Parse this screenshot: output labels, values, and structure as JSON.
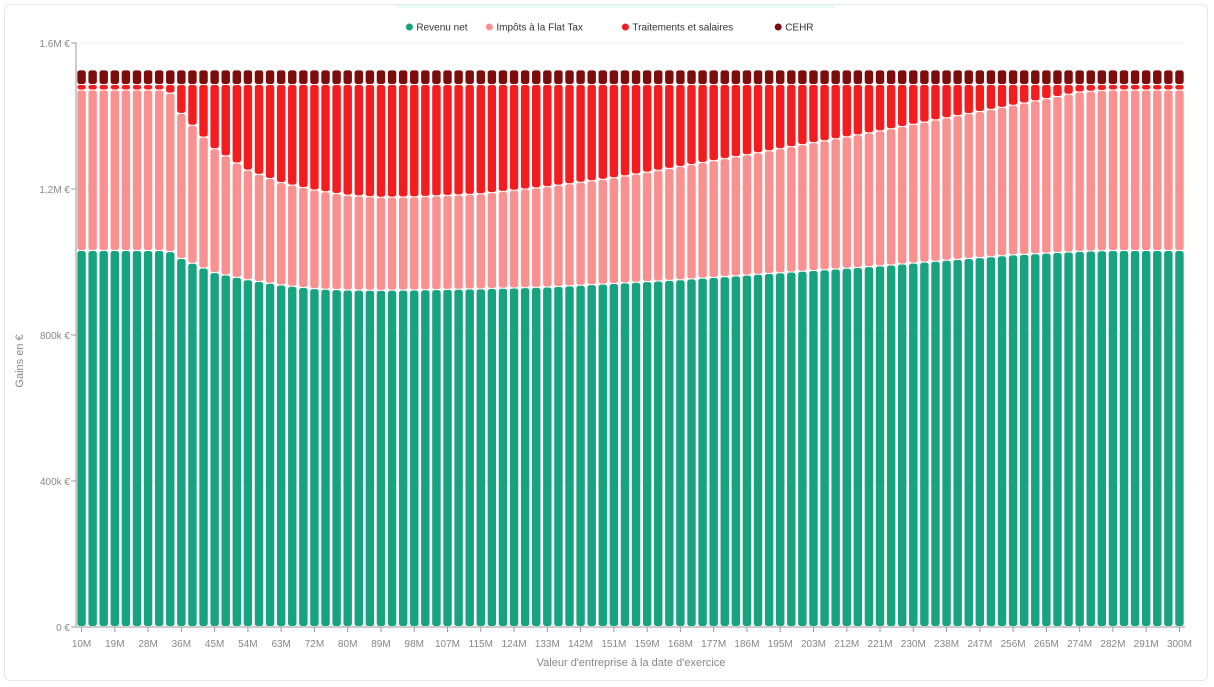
{
  "chart_data": {
    "type": "bar",
    "stacked": true,
    "xlabel": "Valeur d'entreprise à la date d'exercice",
    "ylabel": "Gains en €",
    "ylim": [
      0,
      1600000
    ],
    "grid": true,
    "legend_position": "top",
    "y_ticks": [
      "0 €",
      "400k €",
      "800k €",
      "1.2M €",
      "1.6M €"
    ],
    "y_tick_values": [
      0,
      400000,
      800000,
      1200000,
      1600000
    ],
    "x_ticks": [
      "10M",
      "19M",
      "28M",
      "36M",
      "45M",
      "54M",
      "63M",
      "72M",
      "80M",
      "89M",
      "98M",
      "107M",
      "115M",
      "124M",
      "133M",
      "142M",
      "151M",
      "159M",
      "168M",
      "177M",
      "186M",
      "195M",
      "203M",
      "212M",
      "221M",
      "230M",
      "238M",
      "247M",
      "256M",
      "265M",
      "274M",
      "282M",
      "291M",
      "300M"
    ],
    "x_range_millions": [
      10,
      300
    ],
    "n_bars": 100,
    "series": [
      {
        "name": "Revenu net",
        "color": "#17a37f"
      },
      {
        "name": "Impôts à la Flat Tax",
        "color": "#f99191"
      },
      {
        "name": "Traitements et salaires",
        "color": "#f31c1f"
      },
      {
        "name": "CEHR",
        "color": "#7d0c0c"
      }
    ],
    "anchor_points": [
      {
        "x": 10,
        "net": 1030000,
        "flat_tax": 440000,
        "salaires": 15000,
        "cehr": 40000
      },
      {
        "x": 33,
        "net": 1030000,
        "flat_tax": 440000,
        "salaires": 15000,
        "cehr": 40000
      },
      {
        "x": 36,
        "net": 1010000,
        "flat_tax": 400000,
        "salaires": 75000,
        "cehr": 40000
      },
      {
        "x": 45,
        "net": 970000,
        "flat_tax": 340000,
        "salaires": 175000,
        "cehr": 40000
      },
      {
        "x": 54,
        "net": 950000,
        "flat_tax": 300000,
        "salaires": 235000,
        "cehr": 40000
      },
      {
        "x": 63,
        "net": 935000,
        "flat_tax": 280000,
        "salaires": 270000,
        "cehr": 40000
      },
      {
        "x": 72,
        "net": 925000,
        "flat_tax": 270000,
        "salaires": 290000,
        "cehr": 40000
      },
      {
        "x": 80,
        "net": 922000,
        "flat_tax": 260000,
        "salaires": 303000,
        "cehr": 40000
      },
      {
        "x": 89,
        "net": 921000,
        "flat_tax": 255000,
        "salaires": 309000,
        "cehr": 40000
      },
      {
        "x": 98,
        "net": 922000,
        "flat_tax": 255000,
        "salaires": 308000,
        "cehr": 40000
      },
      {
        "x": 115,
        "net": 925000,
        "flat_tax": 260000,
        "salaires": 300000,
        "cehr": 40000
      },
      {
        "x": 133,
        "net": 930000,
        "flat_tax": 275000,
        "salaires": 280000,
        "cehr": 40000
      },
      {
        "x": 151,
        "net": 940000,
        "flat_tax": 290000,
        "salaires": 255000,
        "cehr": 40000
      },
      {
        "x": 168,
        "net": 950000,
        "flat_tax": 310000,
        "salaires": 225000,
        "cehr": 40000
      },
      {
        "x": 186,
        "net": 963000,
        "flat_tax": 330000,
        "salaires": 192000,
        "cehr": 40000
      },
      {
        "x": 203,
        "net": 975000,
        "flat_tax": 350000,
        "salaires": 160000,
        "cehr": 40000
      },
      {
        "x": 221,
        "net": 988000,
        "flat_tax": 370000,
        "salaires": 127000,
        "cehr": 40000
      },
      {
        "x": 238,
        "net": 1003000,
        "flat_tax": 390000,
        "salaires": 92000,
        "cehr": 40000
      },
      {
        "x": 256,
        "net": 1018000,
        "flat_tax": 410000,
        "salaires": 57000,
        "cehr": 40000
      },
      {
        "x": 274,
        "net": 1028000,
        "flat_tax": 437000,
        "salaires": 20000,
        "cehr": 40000
      },
      {
        "x": 282,
        "net": 1030000,
        "flat_tax": 440000,
        "salaires": 15000,
        "cehr": 40000
      },
      {
        "x": 300,
        "net": 1030000,
        "flat_tax": 440000,
        "salaires": 15000,
        "cehr": 40000
      }
    ]
  }
}
